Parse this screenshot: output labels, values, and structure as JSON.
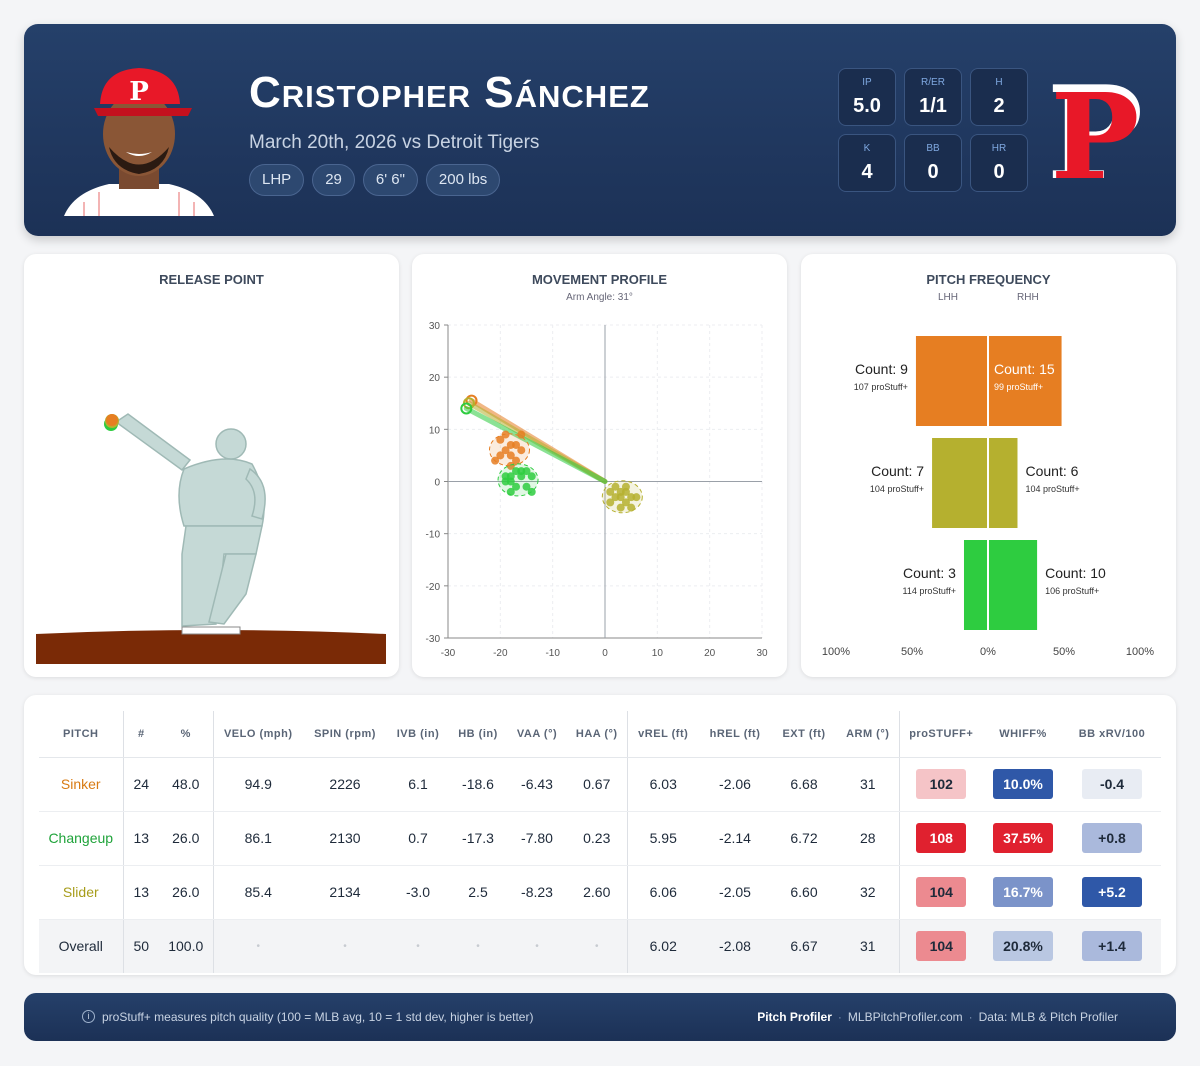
{
  "player": {
    "name": "Cristopher Sánchez",
    "game": "March 20th, 2026 vs Detroit Tigers",
    "chips": [
      "LHP",
      "29",
      "6' 6\"",
      "200 lbs"
    ],
    "cap_letter": "P"
  },
  "line": [
    {
      "label": "IP",
      "value": "5.0"
    },
    {
      "label": "R/ER",
      "value": "1/1"
    },
    {
      "label": "H",
      "value": "2"
    },
    {
      "label": "K",
      "value": "4"
    },
    {
      "label": "BB",
      "value": "0"
    },
    {
      "label": "HR",
      "value": "0"
    }
  ],
  "team_logo_letter": "P",
  "colors": {
    "sinker": "#e67e22",
    "changeup": "#2ecc40",
    "slider": "#b5b02f",
    "header": "#1c3156",
    "team_red": "#e81828"
  },
  "panels": {
    "release_title": "RELEASE POINT",
    "movement_title": "MOVEMENT PROFILE",
    "movement_sub": "Arm Angle: 31°",
    "freq_title": "PITCH FREQUENCY",
    "freq_lhh": "LHH",
    "freq_rhh": "RHH"
  },
  "chart_data": [
    {
      "type": "scatter",
      "title": "MOVEMENT PROFILE",
      "subtitle": "Arm Angle: 31°",
      "xlim": [
        -30,
        30
      ],
      "ylim": [
        -30,
        30
      ],
      "xticks": [
        -30,
        -20,
        -10,
        0,
        10,
        20,
        30
      ],
      "yticks": [
        30,
        20,
        10,
        0,
        -10,
        -20,
        -30
      ],
      "grid": true,
      "series": [
        {
          "pitch": "sinker",
          "points": [
            [
              -20,
              8
            ],
            [
              -19,
              6
            ],
            [
              -18,
              5
            ],
            [
              -17,
              7
            ],
            [
              -16,
              9
            ],
            [
              -21,
              4
            ],
            [
              -18,
              3
            ],
            [
              -17,
              4
            ],
            [
              -19,
              9
            ],
            [
              -20,
              5
            ],
            [
              -16,
              6
            ],
            [
              -18,
              7
            ]
          ]
        },
        {
          "pitch": "changeup",
          "points": [
            [
              -18,
              1
            ],
            [
              -17,
              -1
            ],
            [
              -16,
              1
            ],
            [
              -19,
              0
            ],
            [
              -15,
              2
            ],
            [
              -14,
              1
            ],
            [
              -17,
              2
            ],
            [
              -18,
              -2
            ],
            [
              -15,
              -1
            ],
            [
              -14,
              -2
            ],
            [
              -16,
              2
            ],
            [
              -19,
              1
            ],
            [
              -18,
              0
            ]
          ]
        },
        {
          "pitch": "slider",
          "points": [
            [
              1,
              -2
            ],
            [
              2,
              -3
            ],
            [
              3,
              -2
            ],
            [
              4,
              -4
            ],
            [
              5,
              -3
            ],
            [
              3,
              -5
            ],
            [
              2,
              -1
            ],
            [
              4,
              -2
            ],
            [
              5,
              -5
            ],
            [
              6,
              -3
            ],
            [
              3,
              -3
            ],
            [
              1,
              -4
            ],
            [
              4,
              -1
            ]
          ]
        }
      ],
      "arm_lines": [
        {
          "pitch": "sinker",
          "from": [
            0,
            0
          ],
          "to": [
            -25.5,
            15.5
          ]
        },
        {
          "pitch": "slider",
          "from": [
            0,
            0
          ],
          "to": [
            -26,
            15
          ]
        },
        {
          "pitch": "changeup",
          "from": [
            0,
            0
          ],
          "to": [
            -26.5,
            14
          ]
        }
      ]
    },
    {
      "type": "bar",
      "title": "PITCH FREQUENCY",
      "orientation": "diverging-horizontal",
      "xticks": [
        "100%",
        "50%",
        "0%",
        "50%",
        "100%"
      ],
      "series": [
        {
          "pitch": "sinker",
          "lhh_count": 9,
          "lhh_stuff": "107 proStuff+",
          "rhh_count": 15,
          "rhh_stuff": "99 proStuff+",
          "lhh_pct": 47.4,
          "rhh_pct": 48.4
        },
        {
          "pitch": "slider",
          "lhh_count": 7,
          "lhh_stuff": "104 proStuff+",
          "rhh_count": 6,
          "rhh_stuff": "104 proStuff+",
          "lhh_pct": 36.8,
          "rhh_pct": 19.4
        },
        {
          "pitch": "changeup",
          "lhh_count": 3,
          "lhh_stuff": "114 proStuff+",
          "rhh_count": 10,
          "rhh_stuff": "106 proStuff+",
          "lhh_pct": 15.8,
          "rhh_pct": 32.3
        }
      ]
    }
  ],
  "table": {
    "headers": [
      "PITCH",
      "#",
      "%",
      "VELO (mph)",
      "SPIN (rpm)",
      "IVB (in)",
      "HB (in)",
      "VAA (°)",
      "HAA (°)",
      "vREL (ft)",
      "hREL (ft)",
      "EXT (ft)",
      "ARM (°)",
      "proSTUFF+",
      "WHIFF%",
      "BB xRV/100"
    ],
    "rows": [
      {
        "pitch": "Sinker",
        "color": "#d87a12",
        "cells": [
          "24",
          "48.0",
          "94.9",
          "2226",
          "6.1",
          "-18.6",
          "-6.43",
          "0.67",
          "6.03",
          "-2.06",
          "6.68",
          "31"
        ],
        "stuff": "102",
        "whiff": "10.0%",
        "xrv": "-0.4"
      },
      {
        "pitch": "Changeup",
        "color": "#1fa33a",
        "cells": [
          "13",
          "26.0",
          "86.1",
          "2130",
          "0.7",
          "-17.3",
          "-7.80",
          "0.23",
          "5.95",
          "-2.14",
          "6.72",
          "28"
        ],
        "stuff": "108",
        "whiff": "37.5%",
        "xrv": "+0.8"
      },
      {
        "pitch": "Slider",
        "color": "#a79d1b",
        "cells": [
          "13",
          "26.0",
          "85.4",
          "2134",
          "-3.0",
          "2.5",
          "-8.23",
          "2.60",
          "6.06",
          "-2.05",
          "6.60",
          "32"
        ],
        "stuff": "104",
        "whiff": "16.7%",
        "xrv": "+5.2"
      },
      {
        "pitch": "Overall",
        "color": "#1e2a3a",
        "cells": [
          "50",
          "100.0",
          "•",
          "•",
          "•",
          "•",
          "•",
          "•",
          "6.02",
          "-2.08",
          "6.67",
          "31"
        ],
        "stuff": "104",
        "whiff": "20.8%",
        "xrv": "+1.4"
      }
    ]
  },
  "footer": {
    "note": "proStuff+ measures pitch quality (100 = MLB avg, 10 = 1 std dev, higher is better)",
    "brand": "Pitch Profiler",
    "site": "MLBPitchProfiler.com",
    "source": "Data: MLB & Pitch Profiler"
  }
}
